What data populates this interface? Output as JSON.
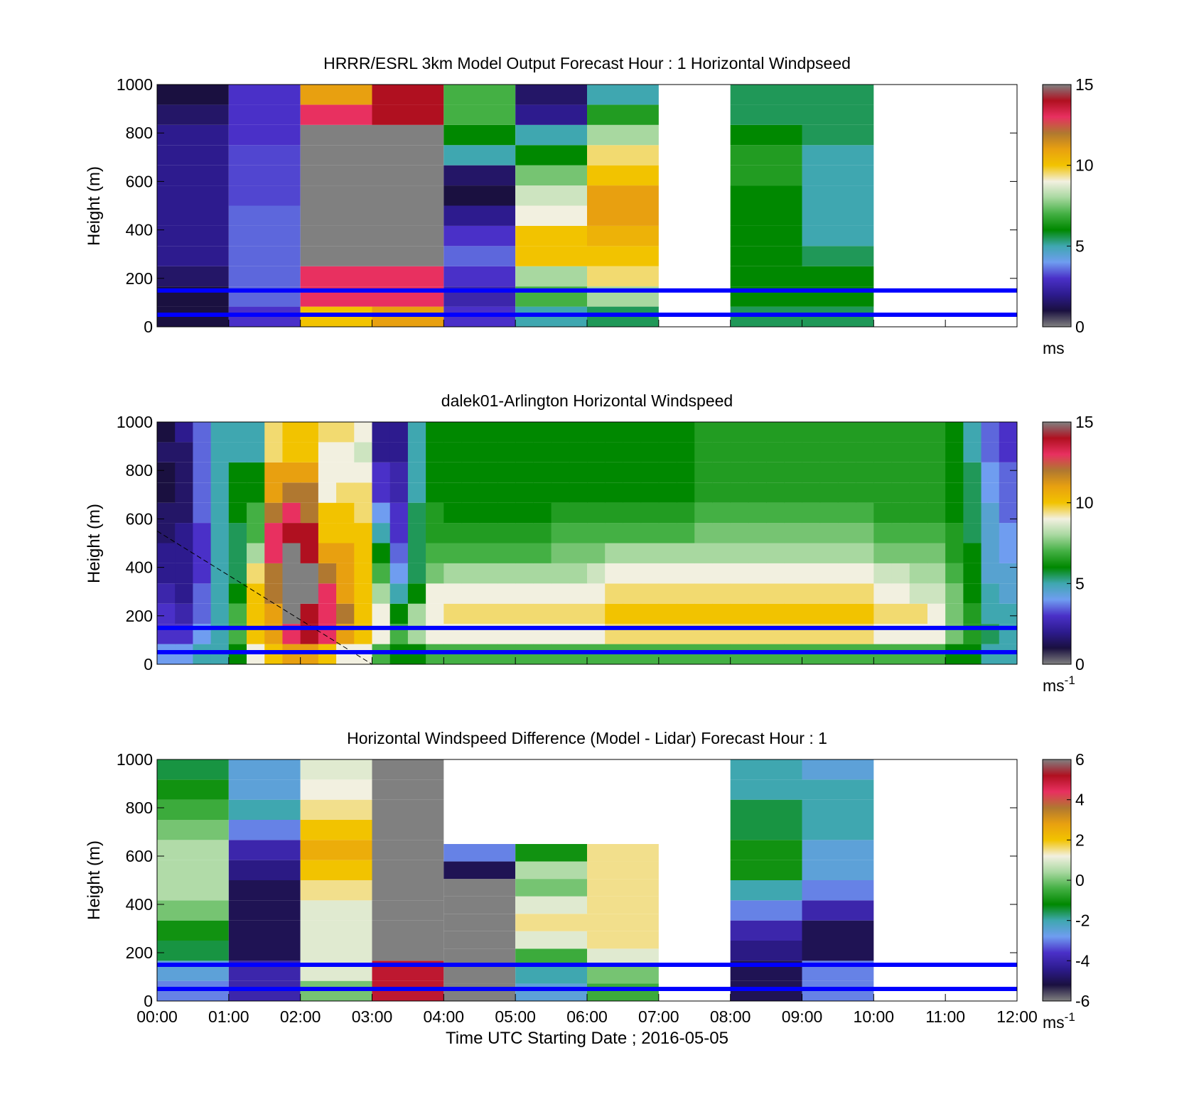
{
  "colors": {
    "windspeed_scale": [
      "#808080",
      "#1a1040",
      "#2d1b8e",
      "#4a30c8",
      "#6f9df0",
      "#3fa7b0",
      "#008800",
      "#44b044",
      "#a8d8a0",
      "#f2f0e0",
      "#f2c300",
      "#e8a010",
      "#b07830",
      "#e83060",
      "#b01020",
      "#808080"
    ],
    "difference_scale": [
      "#808080",
      "#1a1040",
      "#2d1b8e",
      "#4a30c8",
      "#6f9df0",
      "#3fa7b0",
      "#008800",
      "#44b044",
      "#a8d8a0",
      "#f2f0e0",
      "#f2c300",
      "#e8a010",
      "#b07830",
      "#e83060",
      "#b01020",
      "#808080"
    ],
    "reference_lines": "#0000ff"
  },
  "xaxis": {
    "ticks": [
      "00:00",
      "01:00",
      "02:00",
      "03:00",
      "04:00",
      "05:00",
      "06:00",
      "07:00",
      "08:00",
      "09:00",
      "10:00",
      "11:00",
      "12:00"
    ],
    "label": "Time UTC  Starting Date ; 2016-05-05"
  },
  "chart_data": [
    {
      "type": "heatmap",
      "title": "HRRR/ESRL 3km Model Output   Forecast Hour : 1 Horizontal Windpseed",
      "ylabel": "Height (m)",
      "ylim": [
        0,
        1000
      ],
      "yticks": [
        "0",
        "200",
        "400",
        "600",
        "800",
        "1000"
      ],
      "colorbar": {
        "range": [
          0,
          15
        ],
        "ticks": [
          "0",
          "5",
          "10",
          "15"
        ],
        "unit": "ms"
      },
      "reference_heights_m": [
        50,
        150
      ],
      "columns": [
        {
          "start": "00:00",
          "end": "01:00",
          "speed_ms": [
            1,
            1,
            1.5,
            2,
            2,
            2,
            2,
            2,
            2,
            2,
            1.5,
            1
          ]
        },
        {
          "start": "01:00",
          "end": "02:00",
          "speed_ms": [
            3,
            3.5,
            3.5,
            3.5,
            3.5,
            3.5,
            3.2,
            3.2,
            3.2,
            3,
            3,
            3
          ]
        },
        {
          "start": "02:00",
          "end": "03:00",
          "speed_ms": [
            10,
            13,
            13,
            15,
            15,
            15,
            15,
            15,
            15,
            15,
            13,
            11
          ]
        },
        {
          "start": "03:00",
          "end": "04:00",
          "speed_ms": [
            11,
            13,
            13,
            15,
            15,
            15,
            15,
            15,
            15,
            15,
            14,
            14
          ]
        },
        {
          "start": "04:00",
          "end": "05:00",
          "speed_ms": [
            3,
            2.5,
            3,
            3.5,
            3,
            2,
            1,
            1.5,
            5,
            6,
            7,
            7
          ]
        },
        {
          "start": "05:00",
          "end": "06:00",
          "speed_ms": [
            5,
            7,
            8,
            10,
            10,
            9,
            8.5,
            7.5,
            6,
            5,
            2,
            1.5
          ]
        },
        {
          "start": "06:00",
          "end": "07:00",
          "speed_ms": [
            5.5,
            8,
            9.5,
            10,
            10.5,
            11,
            11,
            10,
            9.5,
            8,
            6.5,
            5
          ]
        },
        {
          "start": "08:00",
          "end": "09:00",
          "speed_ms": [
            5.5,
            6,
            6,
            6,
            6,
            6,
            6,
            6.5,
            6.5,
            6,
            5.5,
            5.5
          ]
        },
        {
          "start": "09:00",
          "end": "10:00",
          "speed_ms": [
            5.5,
            6,
            6,
            5.5,
            5,
            5,
            5,
            5,
            5,
            5.5,
            5.5,
            5.5
          ]
        }
      ]
    },
    {
      "type": "heatmap",
      "title": "dalek01-Arlington  Horizontal Windspeed",
      "ylabel": "Height (m)",
      "ylim": [
        0,
        1000
      ],
      "yticks": [
        "0",
        "200",
        "400",
        "600",
        "800",
        "1000"
      ],
      "colorbar": {
        "range": [
          0,
          15
        ],
        "ticks": [
          "0",
          "5",
          "10",
          "15"
        ],
        "unit": "ms",
        "unit_exp": "-1"
      },
      "reference_heights_m": [
        50,
        150
      ],
      "dashed_line": {
        "x": [
          "00:00",
          "03:00"
        ],
        "y": [
          550,
          0
        ]
      },
      "column_interval_min": 15,
      "speed_profile_ms": [
        [
          4,
          3,
          3,
          2.5,
          2,
          2,
          1.5,
          1.5,
          1,
          1,
          1.5,
          1
        ],
        [
          4,
          3,
          2.5,
          2,
          2,
          2,
          2,
          1.5,
          1.5,
          1.5,
          1.5,
          2
        ],
        [
          5,
          4,
          3.5,
          3.5,
          3,
          3,
          3,
          3.5,
          3.5,
          3.5,
          3.5,
          3.5
        ],
        [
          5,
          5,
          5,
          5,
          5,
          5,
          5,
          5,
          5,
          5,
          5,
          5
        ],
        [
          6,
          7,
          7,
          6,
          5.5,
          5.5,
          5.5,
          6,
          6,
          6,
          5,
          5
        ],
        [
          9,
          10,
          10,
          10,
          9.5,
          8,
          7,
          7,
          6,
          6,
          5,
          5
        ],
        [
          10,
          11,
          11,
          12,
          12,
          13,
          13,
          12,
          11,
          11,
          9.5,
          9.5
        ],
        [
          11,
          13,
          15,
          15,
          15,
          15,
          14,
          13,
          12,
          11,
          10,
          10
        ],
        [
          11,
          14,
          14,
          15,
          15,
          14,
          14,
          12,
          12,
          11,
          10,
          10
        ],
        [
          10,
          13,
          13,
          13,
          12,
          11,
          10,
          10,
          9,
          9,
          9,
          9.5
        ],
        [
          9,
          11,
          12,
          11,
          11,
          11,
          10,
          10,
          9.5,
          9,
          9,
          9.5
        ],
        [
          9,
          10,
          10,
          10,
          10,
          10,
          10,
          9.5,
          9.5,
          9,
          8.5,
          9
        ],
        [
          7,
          9,
          9,
          8,
          7,
          6,
          5,
          4,
          3,
          3,
          2,
          2
        ],
        [
          6,
          7,
          6,
          5,
          4,
          3.5,
          3,
          3,
          2.5,
          2.5,
          2,
          2
        ],
        [
          6,
          8,
          8,
          6,
          5.5,
          5.5,
          5.5,
          5.5,
          5,
          5,
          5,
          5
        ],
        [
          7,
          9,
          9,
          9,
          7.5,
          7,
          6.5,
          6.5,
          6,
          6,
          6,
          6
        ],
        [
          7,
          9,
          9.5,
          9,
          8,
          7,
          6.5,
          6,
          6,
          6,
          6,
          6
        ],
        [
          7,
          9,
          9.5,
          9,
          8,
          7,
          6.5,
          6,
          6,
          6,
          6,
          6
        ],
        [
          7,
          9,
          9.5,
          9,
          8,
          7,
          6.5,
          6,
          6,
          6,
          6,
          6
        ],
        [
          7,
          9,
          9.5,
          9,
          8,
          7,
          6.5,
          6,
          6,
          6,
          6,
          6
        ],
        [
          7,
          9,
          9.5,
          9,
          8,
          7,
          6.5,
          6,
          6,
          6,
          6,
          6
        ],
        [
          7,
          9,
          9.5,
          9,
          8,
          7,
          6.5,
          6,
          6,
          6,
          6,
          6
        ],
        [
          7,
          9,
          9.5,
          9,
          8,
          7.5,
          7,
          6.5,
          6,
          6,
          6,
          6
        ],
        [
          7,
          9,
          9.5,
          9,
          8,
          7.5,
          7,
          6.5,
          6,
          6,
          6,
          6
        ],
        [
          7,
          9,
          9.5,
          9,
          8.5,
          7.5,
          7,
          6.5,
          6,
          6,
          6,
          6
        ],
        [
          7,
          9.5,
          10,
          9.5,
          9,
          8,
          7,
          6.5,
          6,
          6,
          6,
          6
        ],
        [
          7,
          9.5,
          10,
          9.5,
          9,
          8,
          7,
          6.5,
          6,
          6,
          6,
          6
        ],
        [
          7,
          9.5,
          10,
          9.5,
          9,
          8,
          7,
          6.5,
          6,
          6,
          6,
          6
        ],
        [
          7,
          9.5,
          10,
          9.5,
          9,
          8,
          7,
          6.5,
          6,
          6,
          6,
          6
        ],
        [
          7,
          9.5,
          10,
          9.5,
          9,
          8,
          7,
          6.5,
          6,
          6,
          6,
          6
        ],
        [
          7,
          9.5,
          10,
          9.5,
          9,
          8,
          7.5,
          7,
          6.5,
          6.5,
          6.5,
          6.5
        ],
        [
          7,
          9.5,
          10,
          9.5,
          9,
          8,
          7.5,
          7,
          6.5,
          6.5,
          6.5,
          6.5
        ],
        [
          7,
          9.5,
          10,
          9.5,
          9,
          8,
          7.5,
          7,
          6.5,
          6.5,
          6.5,
          6.5
        ],
        [
          7,
          9.5,
          10,
          9.5,
          9,
          8,
          7.5,
          7,
          6.5,
          6.5,
          6.5,
          6.5
        ],
        [
          7,
          9.5,
          10,
          9.5,
          9,
          8,
          7.5,
          7,
          6.5,
          6.5,
          6.5,
          6.5
        ],
        [
          7,
          9.5,
          10,
          9.5,
          9,
          8,
          7.5,
          7,
          6.5,
          6.5,
          6.5,
          6.5
        ],
        [
          7,
          9.5,
          10,
          9.5,
          9,
          8,
          7.5,
          7,
          6.5,
          6.5,
          6.5,
          6.5
        ],
        [
          7,
          9.5,
          10,
          9.5,
          9,
          8,
          7.5,
          7,
          6.5,
          6.5,
          6.5,
          6.5
        ],
        [
          7,
          9.5,
          10,
          9.5,
          9,
          8,
          7.5,
          7,
          6.5,
          6.5,
          6.5,
          6.5
        ],
        [
          7,
          9.5,
          10,
          9.5,
          9,
          8,
          7.5,
          7,
          6.5,
          6.5,
          6.5,
          6.5
        ],
        [
          7,
          9,
          9.5,
          9,
          8.5,
          7.5,
          7,
          6.5,
          6.5,
          6.5,
          6.5,
          6.5
        ],
        [
          7,
          9,
          9.5,
          9,
          8.5,
          7.5,
          7,
          6.5,
          6.5,
          6.5,
          6.5,
          6.5
        ],
        [
          7,
          9,
          9.5,
          8.5,
          8,
          7.5,
          7,
          6.5,
          6.5,
          6.5,
          6.5,
          6.5
        ],
        [
          7,
          9,
          9,
          8.5,
          8,
          7.5,
          7,
          6.5,
          6.5,
          6.5,
          6.5,
          6.5
        ],
        [
          6,
          7.5,
          7.5,
          7.5,
          7,
          6.5,
          6.5,
          6,
          6,
          6,
          6,
          6
        ],
        [
          6,
          6.5,
          6.5,
          6,
          6,
          6,
          5.5,
          5.5,
          5.5,
          5.5,
          5,
          5
        ],
        [
          5,
          5.5,
          5,
          5,
          4.5,
          4.5,
          4.5,
          4.5,
          4,
          4,
          3.5,
          3.5
        ],
        [
          5,
          5,
          5,
          4.5,
          4.5,
          4,
          4,
          3.5,
          3.5,
          3.5,
          3,
          3
        ]
      ]
    },
    {
      "type": "heatmap",
      "title": "Horizontal Windspeed Difference (Model - Lidar) Forecast Hour : 1",
      "ylabel": "Height (m)",
      "ylim": [
        0,
        1000
      ],
      "yticks": [
        "0",
        "200",
        "400",
        "600",
        "800",
        "1000"
      ],
      "colorbar": {
        "range": [
          -6,
          6
        ],
        "ticks": [
          "-6",
          "-4",
          "-2",
          "0",
          "2",
          "4",
          "6"
        ],
        "unit": "ms",
        "unit_exp": "-1"
      },
      "reference_heights_m": [
        50,
        150
      ],
      "columns": [
        {
          "start": "00:00",
          "end": "01:00",
          "diff_ms": [
            -3,
            -2.5,
            -1.5,
            -1,
            0,
            0.5,
            0.5,
            0.5,
            0,
            -0.5,
            -1,
            -1.5
          ]
        },
        {
          "start": "01:00",
          "end": "02:00",
          "diff_ms": [
            -4,
            -4,
            -5,
            -5,
            -5,
            -5,
            -4.5,
            -4,
            -3,
            -2,
            -2.5,
            -2.5
          ]
        },
        {
          "start": "02:00",
          "end": "03:00",
          "diff_ms": [
            0,
            1,
            1,
            1,
            1,
            1.5,
            2,
            2.5,
            2,
            1.5,
            1.2,
            1
          ]
        },
        {
          "start": "03:00",
          "end": "04:00",
          "diff_ms": [
            5,
            5,
            6,
            6,
            6,
            6,
            6,
            6,
            6,
            6,
            6,
            6
          ]
        },
        {
          "start": "04:00",
          "end": "05:00",
          "diff_ms": [
            -6,
            -6,
            -6,
            -6,
            -6.5,
            -6.5,
            -6,
            -5,
            -3
          ]
        },
        {
          "start": "05:00",
          "end": "06:00",
          "diff_ms": [
            -2.5,
            -2,
            -0.5,
            1,
            1.5,
            1,
            0,
            0.5,
            -1
          ]
        },
        {
          "start": "06:00",
          "end": "07:00",
          "diff_ms": [
            -0.5,
            0,
            1,
            1.5,
            1.5,
            1.5,
            1.5,
            1.5,
            1.5
          ]
        },
        {
          "start": "08:00",
          "end": "09:00",
          "diff_ms": [
            -5,
            -5,
            -4.5,
            -4,
            -3,
            -2,
            -1,
            -1,
            -1.5,
            -1.5,
            -2,
            -2
          ]
        },
        {
          "start": "09:00",
          "end": "10:00",
          "diff_ms": [
            -3,
            -3,
            -5,
            -5,
            -4,
            -3,
            -2.5,
            -2.5,
            -2,
            -2,
            -2,
            -2.5
          ]
        }
      ]
    }
  ]
}
